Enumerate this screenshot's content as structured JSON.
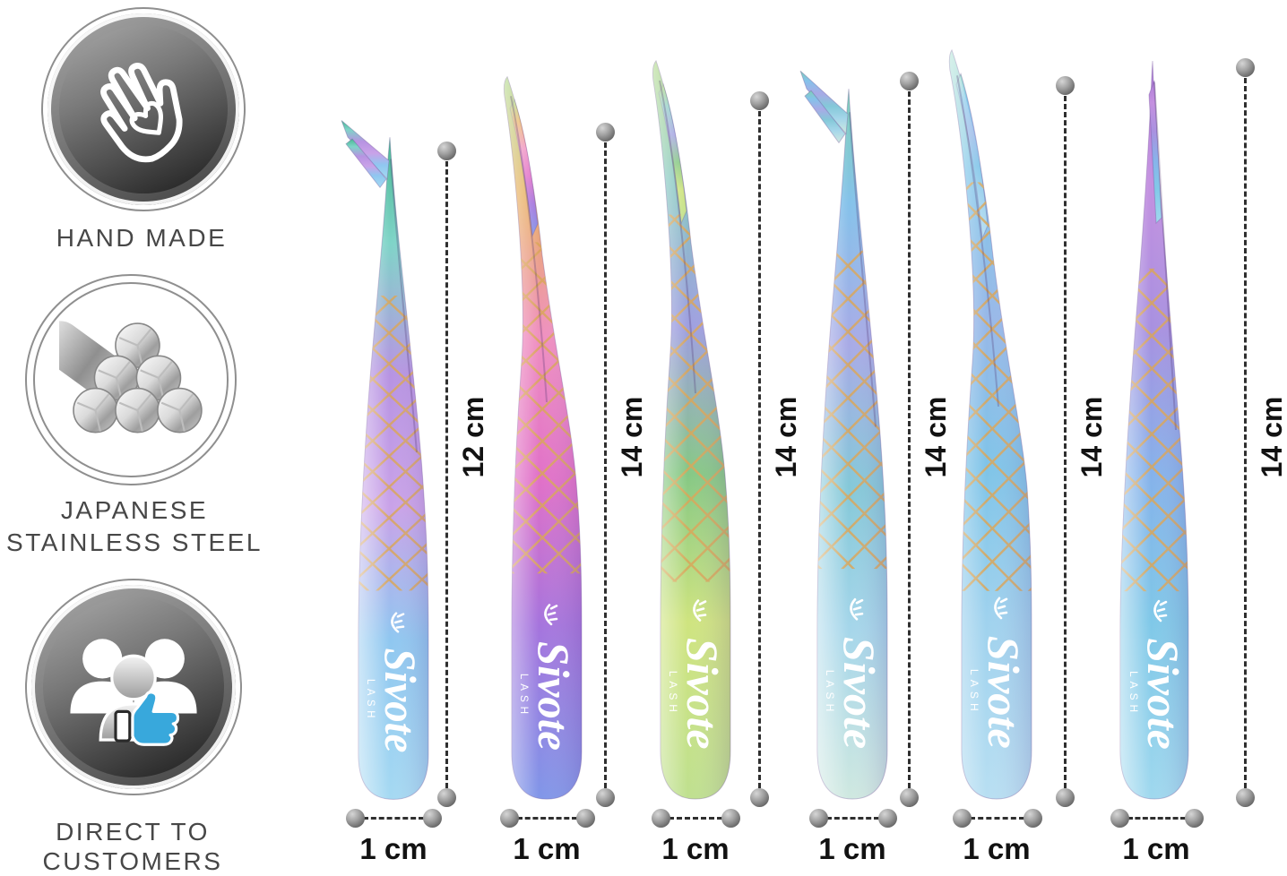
{
  "page": {
    "background": "#ffffff"
  },
  "badges": [
    {
      "id": "hand-made",
      "lines": [
        "HAND MADE"
      ],
      "icon": "hand-heart-icon",
      "variant": "dark"
    },
    {
      "id": "japanese-stainless-steel",
      "lines": [
        "JAPANESE",
        "STAINLESS STEEL"
      ],
      "icon": "steel-rods-icon",
      "variant": "light"
    },
    {
      "id": "direct-to-customers",
      "lines": [
        "DIRECT TO",
        "CUSTOMERS"
      ],
      "icon": "customers-thumbs-up-icon",
      "variant": "dark"
    }
  ],
  "brand": {
    "logo_script": "Sivote",
    "logo_sub": "LASH"
  },
  "annotations": {
    "dot_color": "#8b8b8b",
    "line_color": "#2f2f2f",
    "text_color": "#121212"
  },
  "texture": {
    "net_color": "#d9a558"
  },
  "tweezers": [
    {
      "id": "tweezer-1",
      "tip_style": "angled-90",
      "length": "12 cm",
      "width": "1 cm",
      "colors": [
        "#49b893",
        "#7fd4c8",
        "#b793e2",
        "#c9a2e8",
        "#8fc7f0",
        "#a5d9f2"
      ]
    },
    {
      "id": "tweezer-2",
      "tip_style": "curved",
      "length": "14 cm",
      "width": "1 cm",
      "colors": [
        "#9fcf6f",
        "#e8b05f",
        "#ef8fc0",
        "#e070c8",
        "#a574dd",
        "#8096e8"
      ]
    },
    {
      "id": "tweezer-3",
      "tip_style": "curved",
      "length": "14 cm",
      "width": "1 cm",
      "colors": [
        "#9fd070",
        "#86c8c0",
        "#9f9fe0",
        "#86c884",
        "#cfe47f",
        "#bfe08f"
      ]
    },
    {
      "id": "tweezer-4",
      "tip_style": "angled-90",
      "length": "14 cm",
      "width": "1 cm",
      "colors": [
        "#7fd0b8",
        "#85c2ea",
        "#a8aae6",
        "#84c8d8",
        "#a5d6ea",
        "#cfe8e0"
      ]
    },
    {
      "id": "tweezer-5",
      "tip_style": "curved-long",
      "length": "14 cm",
      "width": "1 cm",
      "colors": [
        "#a8e0d0",
        "#85c8ea",
        "#98b8e8",
        "#7fc4e8",
        "#9fd2ee",
        "#b8dff2"
      ]
    },
    {
      "id": "tweezer-6",
      "tip_style": "straight",
      "length": "14 cm",
      "width": "1 cm",
      "colors": [
        "#b07fd8",
        "#c490e0",
        "#a890e0",
        "#85b2ea",
        "#7fc8e8",
        "#9fd8ee"
      ]
    }
  ]
}
